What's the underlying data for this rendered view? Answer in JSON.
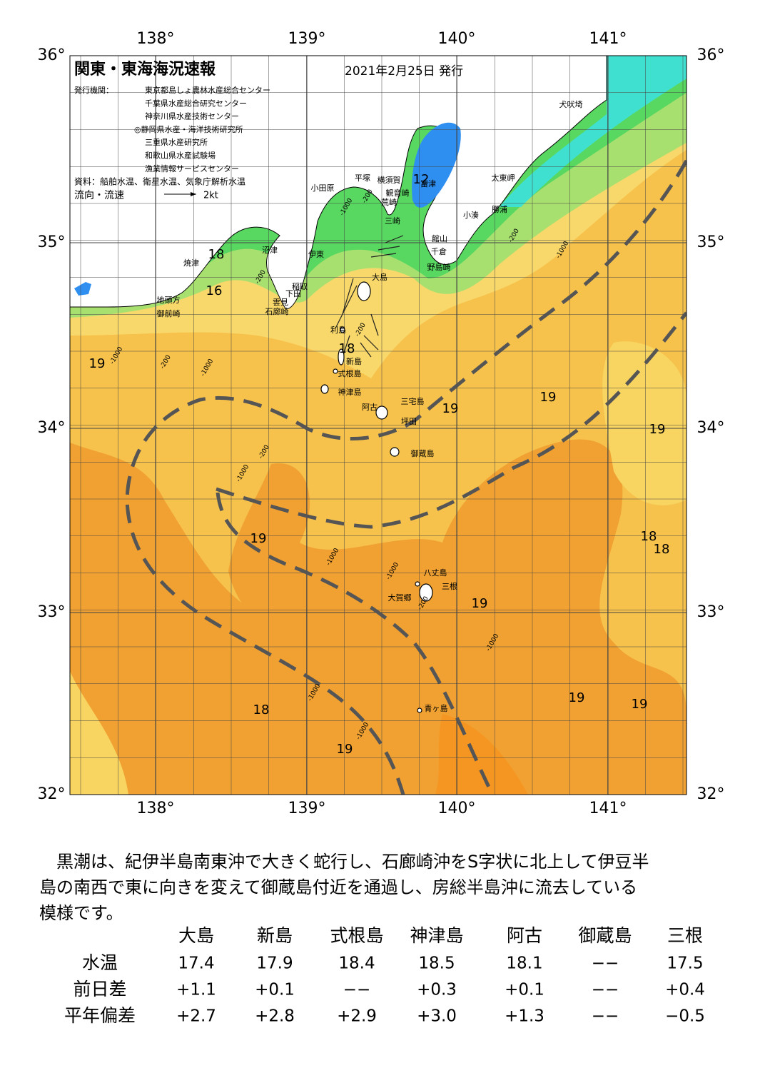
{
  "header": {
    "title": "関東・東海海況速報",
    "date": "2021年2月25日 発行",
    "publisher_label": "発行機関：",
    "publishers": [
      "東京都島しょ農林水産総合センター",
      "千葉県水産総合研究センター",
      "神奈川県水産技術センター",
      "◎静岡県水産・海洋技術研究所",
      "三重県水産研究所",
      "和歌山県水産試験場",
      "漁業情報サービスセンター"
    ],
    "source": "資料：船舶水温、衛星水温、気象庁解析水温",
    "legend_label": "流向・流速",
    "legend_scale": "2kt"
  },
  "axes": {
    "lon_labels": [
      "138°",
      "139°",
      "140°",
      "141°"
    ],
    "lat_labels": [
      "36°",
      "35°",
      "34°",
      "33°",
      "32°"
    ]
  },
  "map": {
    "places": [
      "犬吠埼",
      "富津",
      "太東岬",
      "小田原",
      "平塚",
      "横須賀",
      "観音崎",
      "荒崎",
      "勝浦",
      "小湊",
      "三崎",
      "館山",
      "千倉",
      "野島崎",
      "沼津",
      "伊東",
      "焼津",
      "大島",
      "稲取",
      "下田",
      "地頭方",
      "雲見",
      "石廊崎",
      "御前崎",
      "利島",
      "新島",
      "式根島",
      "神津島",
      "三宅島",
      "阿古",
      "坪田",
      "御蔵島",
      "八丈島",
      "三根",
      "大賀郷",
      "青ヶ島"
    ],
    "temperatures": [
      "18",
      "16",
      "12",
      "19",
      "18",
      "19",
      "19",
      "19",
      "19",
      "18",
      "18",
      "19",
      "19",
      "19",
      "18",
      "19"
    ],
    "depths": [
      "-200",
      "-1000",
      "-200",
      "-1000",
      "-1000",
      "-200",
      "-1000",
      "-200",
      "-200",
      "-1000",
      "-1000",
      "-1000",
      "-200",
      "-1000",
      "-1000",
      "-1000",
      "-200"
    ]
  },
  "description": [
    "　黒潮は、紀伊半島南東沖で大きく蛇行し、石廊崎沖をS字状に北上して伊豆半",
    "島の南西で東に向きを変えて御蔵島付近を通過し、房総半島沖に流去している",
    "模様です。"
  ],
  "table": {
    "columns": [
      "大島",
      "新島",
      "式根島",
      "神津島",
      "阿古",
      "御蔵島",
      "三根"
    ],
    "rows": [
      [
        "水温",
        "17.4",
        "17.9",
        "18.4",
        "18.5",
        "18.1",
        "−−",
        "17.5"
      ],
      [
        "前日差",
        "+1.1",
        "+0.1",
        "−−",
        "+0.3",
        "+0.1",
        "−−",
        "+0.4"
      ],
      [
        "平年偏差",
        "+2.7",
        "+2.8",
        "+2.9",
        "+3.0",
        "+1.3",
        "−−",
        "−0.5"
      ]
    ]
  }
}
